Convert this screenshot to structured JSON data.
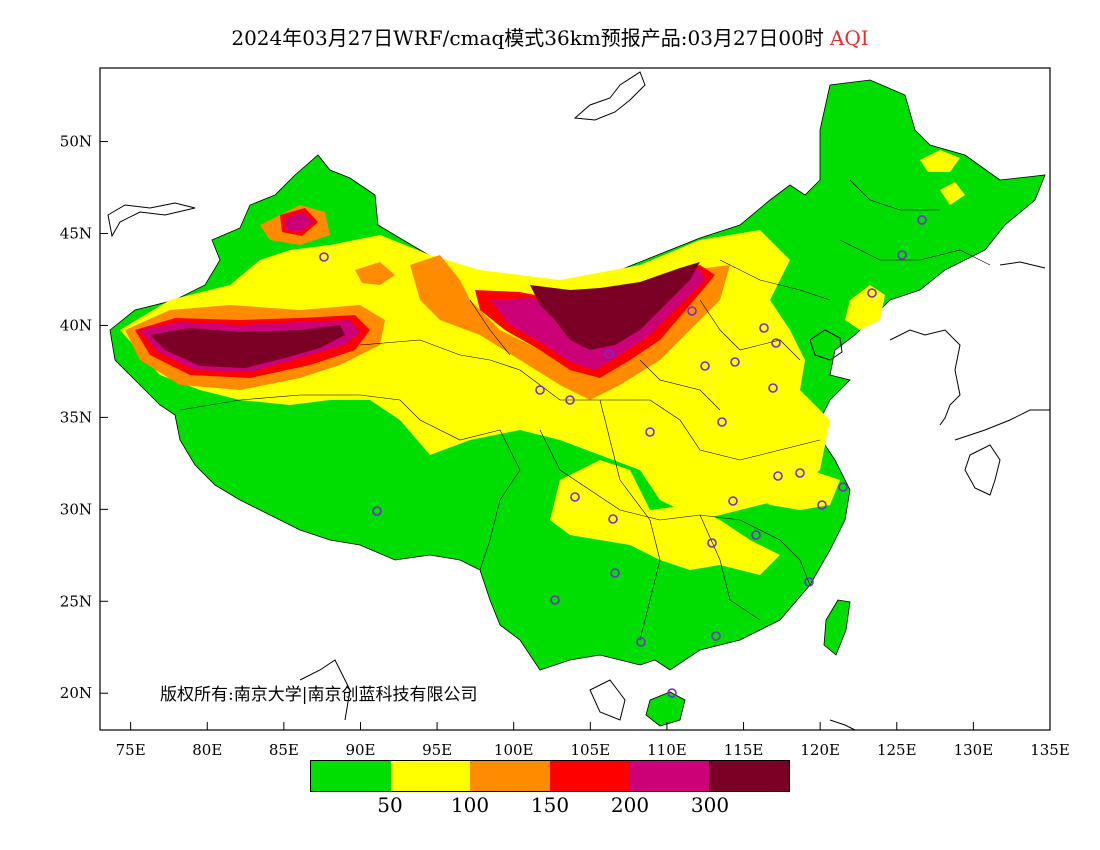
{
  "title": {
    "main": "2024年03月27日WRF/cmaq模式36km预报产品:03月27日00时",
    "variable": "AQI"
  },
  "copyright": "版权所有:南京大学|南京创蓝科技有限公司",
  "axes": {
    "x_labels": [
      "75E",
      "80E",
      "85E",
      "90E",
      "95E",
      "100E",
      "105E",
      "110E",
      "115E",
      "120E",
      "125E",
      "130E",
      "135E"
    ],
    "y_labels": [
      "50N",
      "45N",
      "40N",
      "35N",
      "30N",
      "25N",
      "20N"
    ],
    "xlim": [
      73,
      135
    ],
    "ylim": [
      18,
      54
    ]
  },
  "legend": {
    "colors": [
      "#00dd00",
      "#ffff00",
      "#ff8c00",
      "#ff0000",
      "#cc0077",
      "#7a0025"
    ],
    "labels": [
      "50",
      "100",
      "150",
      "200",
      "300"
    ]
  },
  "stations_color": "#7a2ad0"
}
